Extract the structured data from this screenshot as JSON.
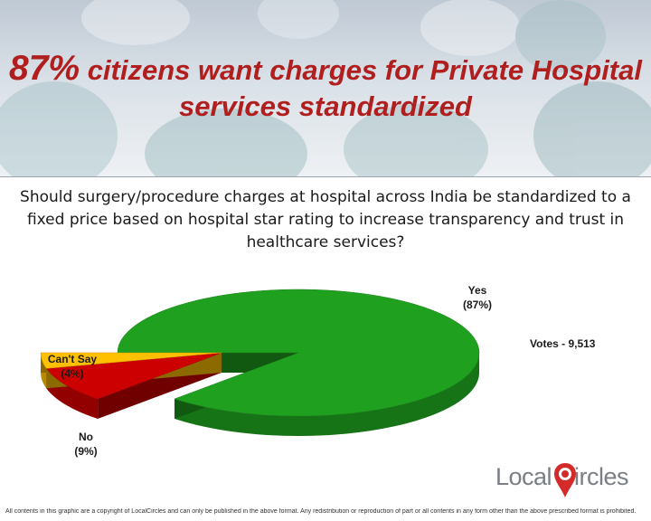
{
  "header": {
    "headline_pct": "87%",
    "headline_rest_line1": "citizens want charges for Private Hospital",
    "headline_line2": "services standardized"
  },
  "question": "Should surgery/procedure charges at hospital across India be standardized to a fixed price based on hospital star rating to increase transparency and trust in healthcare services?",
  "votes": "Votes - 9,513",
  "chart_data": {
    "type": "pie",
    "title": "",
    "slices": [
      {
        "label": "Yes",
        "pct_label": "(87%)",
        "value": 87,
        "color": "#1fa01f"
      },
      {
        "label": "No",
        "pct_label": "(9%)",
        "value": 9,
        "color": "#cc0000"
      },
      {
        "label": "Can't Say",
        "pct_label": "(4%)",
        "value": 4,
        "color": "#ffc000"
      }
    ]
  },
  "logo": {
    "text_left": "Local",
    "text_right": "ircles"
  },
  "footer": "All contents in this graphic are a copyright of LocalCircles and can only be published in the above format. Any redistribution or reproduction of part or all contents in any form other than the above prescribed format is prohibited."
}
